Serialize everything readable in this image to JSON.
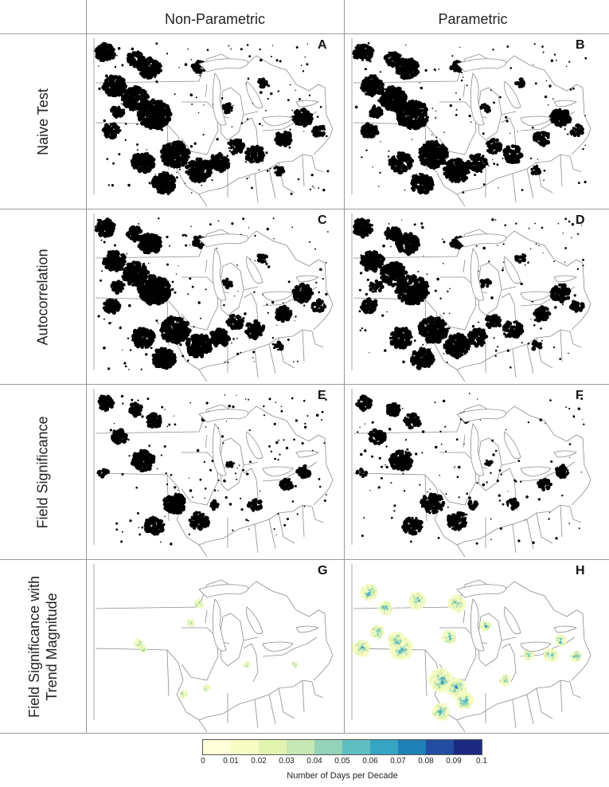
{
  "columns": [
    {
      "label": "Non-Parametric"
    },
    {
      "label": "Parametric"
    }
  ],
  "rows": [
    {
      "label_lines": [
        "Naive Test"
      ],
      "panels": [
        "A",
        "B"
      ]
    },
    {
      "label_lines": [
        "Autocorrelation"
      ],
      "panels": [
        "C",
        "D"
      ]
    },
    {
      "label_lines": [
        "Field Significance"
      ],
      "panels": [
        "E",
        "F"
      ]
    },
    {
      "label_lines": [
        "Field Significance with",
        "Trend Magnitude"
      ],
      "panels": [
        "G",
        "H"
      ]
    }
  ],
  "legend": {
    "title": "Number of Days per Decade",
    "ticks": [
      "0",
      "0.01",
      "0.02",
      "0.03",
      "0.04",
      "0.05",
      "0.06",
      "0.07",
      "0.08",
      "0.09",
      "0.1"
    ],
    "colors": [
      "#ffffd9",
      "#f7fcc4",
      "#e3f4b1",
      "#c5e8b4",
      "#93d3b9",
      "#5fbec1",
      "#36a5c3",
      "#1f80b8",
      "#234da0",
      "#1c2b80"
    ]
  },
  "map_colors": {
    "significant": "#000000",
    "boundary": "#8c8c8c"
  }
}
